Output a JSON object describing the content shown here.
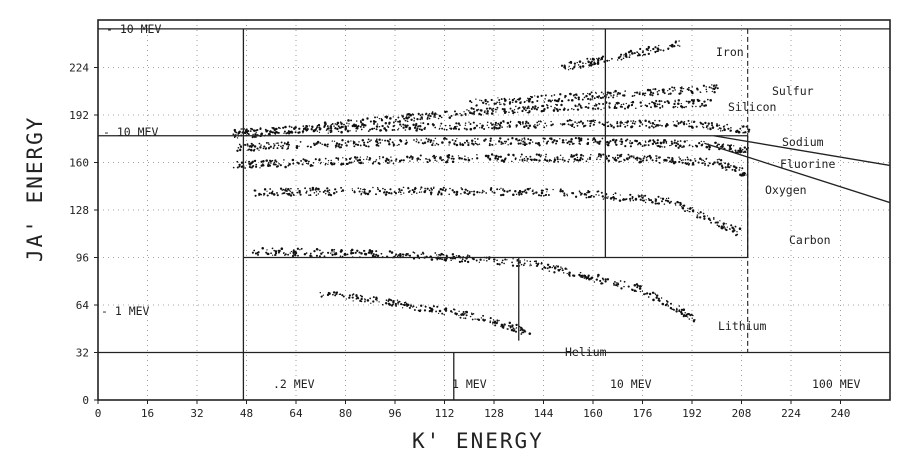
{
  "chart_data": {
    "type": "scatter",
    "xlabel": "K' ENERGY",
    "ylabel": "JA' ENERGY",
    "xlim": [
      0,
      256
    ],
    "ylim": [
      0,
      256
    ],
    "x_ticks": [
      0,
      16,
      32,
      48,
      64,
      80,
      96,
      112,
      128,
      144,
      160,
      176,
      192,
      208,
      224,
      240
    ],
    "y_ticks": [
      0,
      32,
      64,
      96,
      128,
      160,
      192,
      224
    ],
    "grid": "dotted",
    "reference_lines": {
      "ja_levels": [
        {
          "label": "- 10 MEV",
          "y": 250
        },
        {
          "label": "- 10 MEV",
          "y": 178
        },
        {
          "label": "- 1 MEV",
          "y": 64
        }
      ],
      "k_levels": [
        {
          "label": ".2 MEV",
          "x": 47
        },
        {
          "label": "1 MEV",
          "x": 115
        },
        {
          "label": "10 MEV",
          "x": 164
        },
        {
          "label": "100 MEV",
          "x": 210
        }
      ]
    },
    "annotations": [
      "Iron",
      "Sulfur",
      "Silicon",
      "Sodium",
      "Fluorine",
      "Oxygen",
      "Carbon",
      "Lithium",
      "Helium"
    ],
    "tracks": [
      {
        "element": "Iron",
        "points": [
          [
            150,
            224
          ],
          [
            170,
            232
          ],
          [
            188,
            240
          ]
        ]
      },
      {
        "element": "Sulfur",
        "points": [
          [
            120,
            200
          ],
          [
            160,
            205
          ],
          [
            200,
            210
          ]
        ]
      },
      {
        "element": "Silicon",
        "points": [
          [
            44,
            178
          ],
          [
            80,
            186
          ],
          [
            120,
            194
          ],
          [
            160,
            198
          ],
          [
            198,
            200
          ]
        ]
      },
      {
        "element": "Sodium",
        "points": [
          [
            44,
            180
          ],
          [
            100,
            184
          ],
          [
            150,
            186
          ],
          [
            190,
            186
          ],
          [
            210,
            182
          ]
        ]
      },
      {
        "element": "Fluorine",
        "points": [
          [
            44,
            170
          ],
          [
            100,
            174
          ],
          [
            160,
            174
          ],
          [
            195,
            172
          ],
          [
            210,
            168
          ]
        ]
      },
      {
        "element": "Oxygen",
        "points": [
          [
            44,
            158
          ],
          [
            80,
            161
          ],
          [
            120,
            163
          ],
          [
            170,
            163
          ],
          [
            200,
            160
          ],
          [
            210,
            152
          ]
        ]
      },
      {
        "element": "Carbon",
        "points": [
          [
            50,
            140
          ],
          [
            100,
            141
          ],
          [
            150,
            140
          ],
          [
            185,
            134
          ],
          [
            208,
            112
          ]
        ]
      },
      {
        "element": "Lithium",
        "points": [
          [
            50,
            100
          ],
          [
            100,
            98
          ],
          [
            140,
            92
          ],
          [
            175,
            75
          ],
          [
            193,
            55
          ]
        ]
      },
      {
        "element": "Helium",
        "points": [
          [
            72,
            72
          ],
          [
            100,
            64
          ],
          [
            125,
            55
          ],
          [
            140,
            45
          ]
        ]
      }
    ]
  }
}
